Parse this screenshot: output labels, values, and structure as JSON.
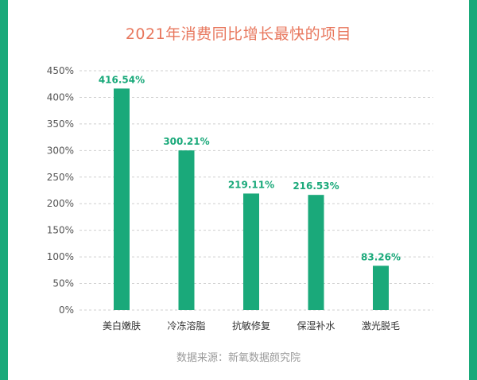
{
  "title": "2021年消费同比增长最快的项目",
  "source": "数据来源：新氧数据颜究院",
  "colors": {
    "bar": "#1aa97a",
    "title": "#e8775d",
    "frame": "#1aa97a",
    "label": "#1aa97a"
  },
  "chart_data": {
    "type": "bar",
    "title": "2021年消费同比增长最快的项目",
    "categories": [
      "美白嫩肤",
      "冷冻溶脂",
      "抗敏修复",
      "保湿补水",
      "激光脱毛"
    ],
    "values": [
      416.54,
      300.21,
      219.11,
      216.53,
      83.26
    ],
    "data_labels": [
      "416.54%",
      "300.21%",
      "219.11%",
      "216.53%",
      "83.26%"
    ],
    "y_ticks": [
      "0%",
      "50%",
      "100%",
      "150%",
      "200%",
      "250%",
      "300%",
      "350%",
      "400%",
      "450%"
    ],
    "ylim": [
      0,
      450
    ],
    "grid": true,
    "legend": "none"
  }
}
